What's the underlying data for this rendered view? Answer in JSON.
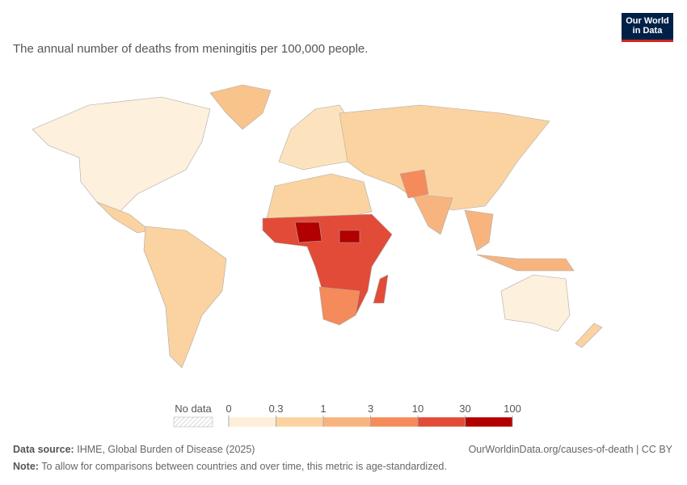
{
  "logo": {
    "line1": "Our World",
    "line2": "in Data"
  },
  "subtitle": "The annual number of deaths from meningitis per 100,000 people.",
  "legend": {
    "no_data": "No data",
    "ticks": [
      0,
      0.3,
      1,
      3,
      10,
      30,
      100
    ],
    "colors": [
      "#fdefd9",
      "#fbd3a0",
      "#f8b47f",
      "#f58a5a",
      "#e24b37",
      "#b20000"
    ]
  },
  "footer": {
    "source_label": "Data source:",
    "source": "IHME, Global Burden of Disease (2025)",
    "url": "OurWorldinData.org/causes-of-death | CC BY",
    "note_label": "Note:",
    "note": "To allow for comparisons between countries and over time, this metric is age-standardized."
  }
}
